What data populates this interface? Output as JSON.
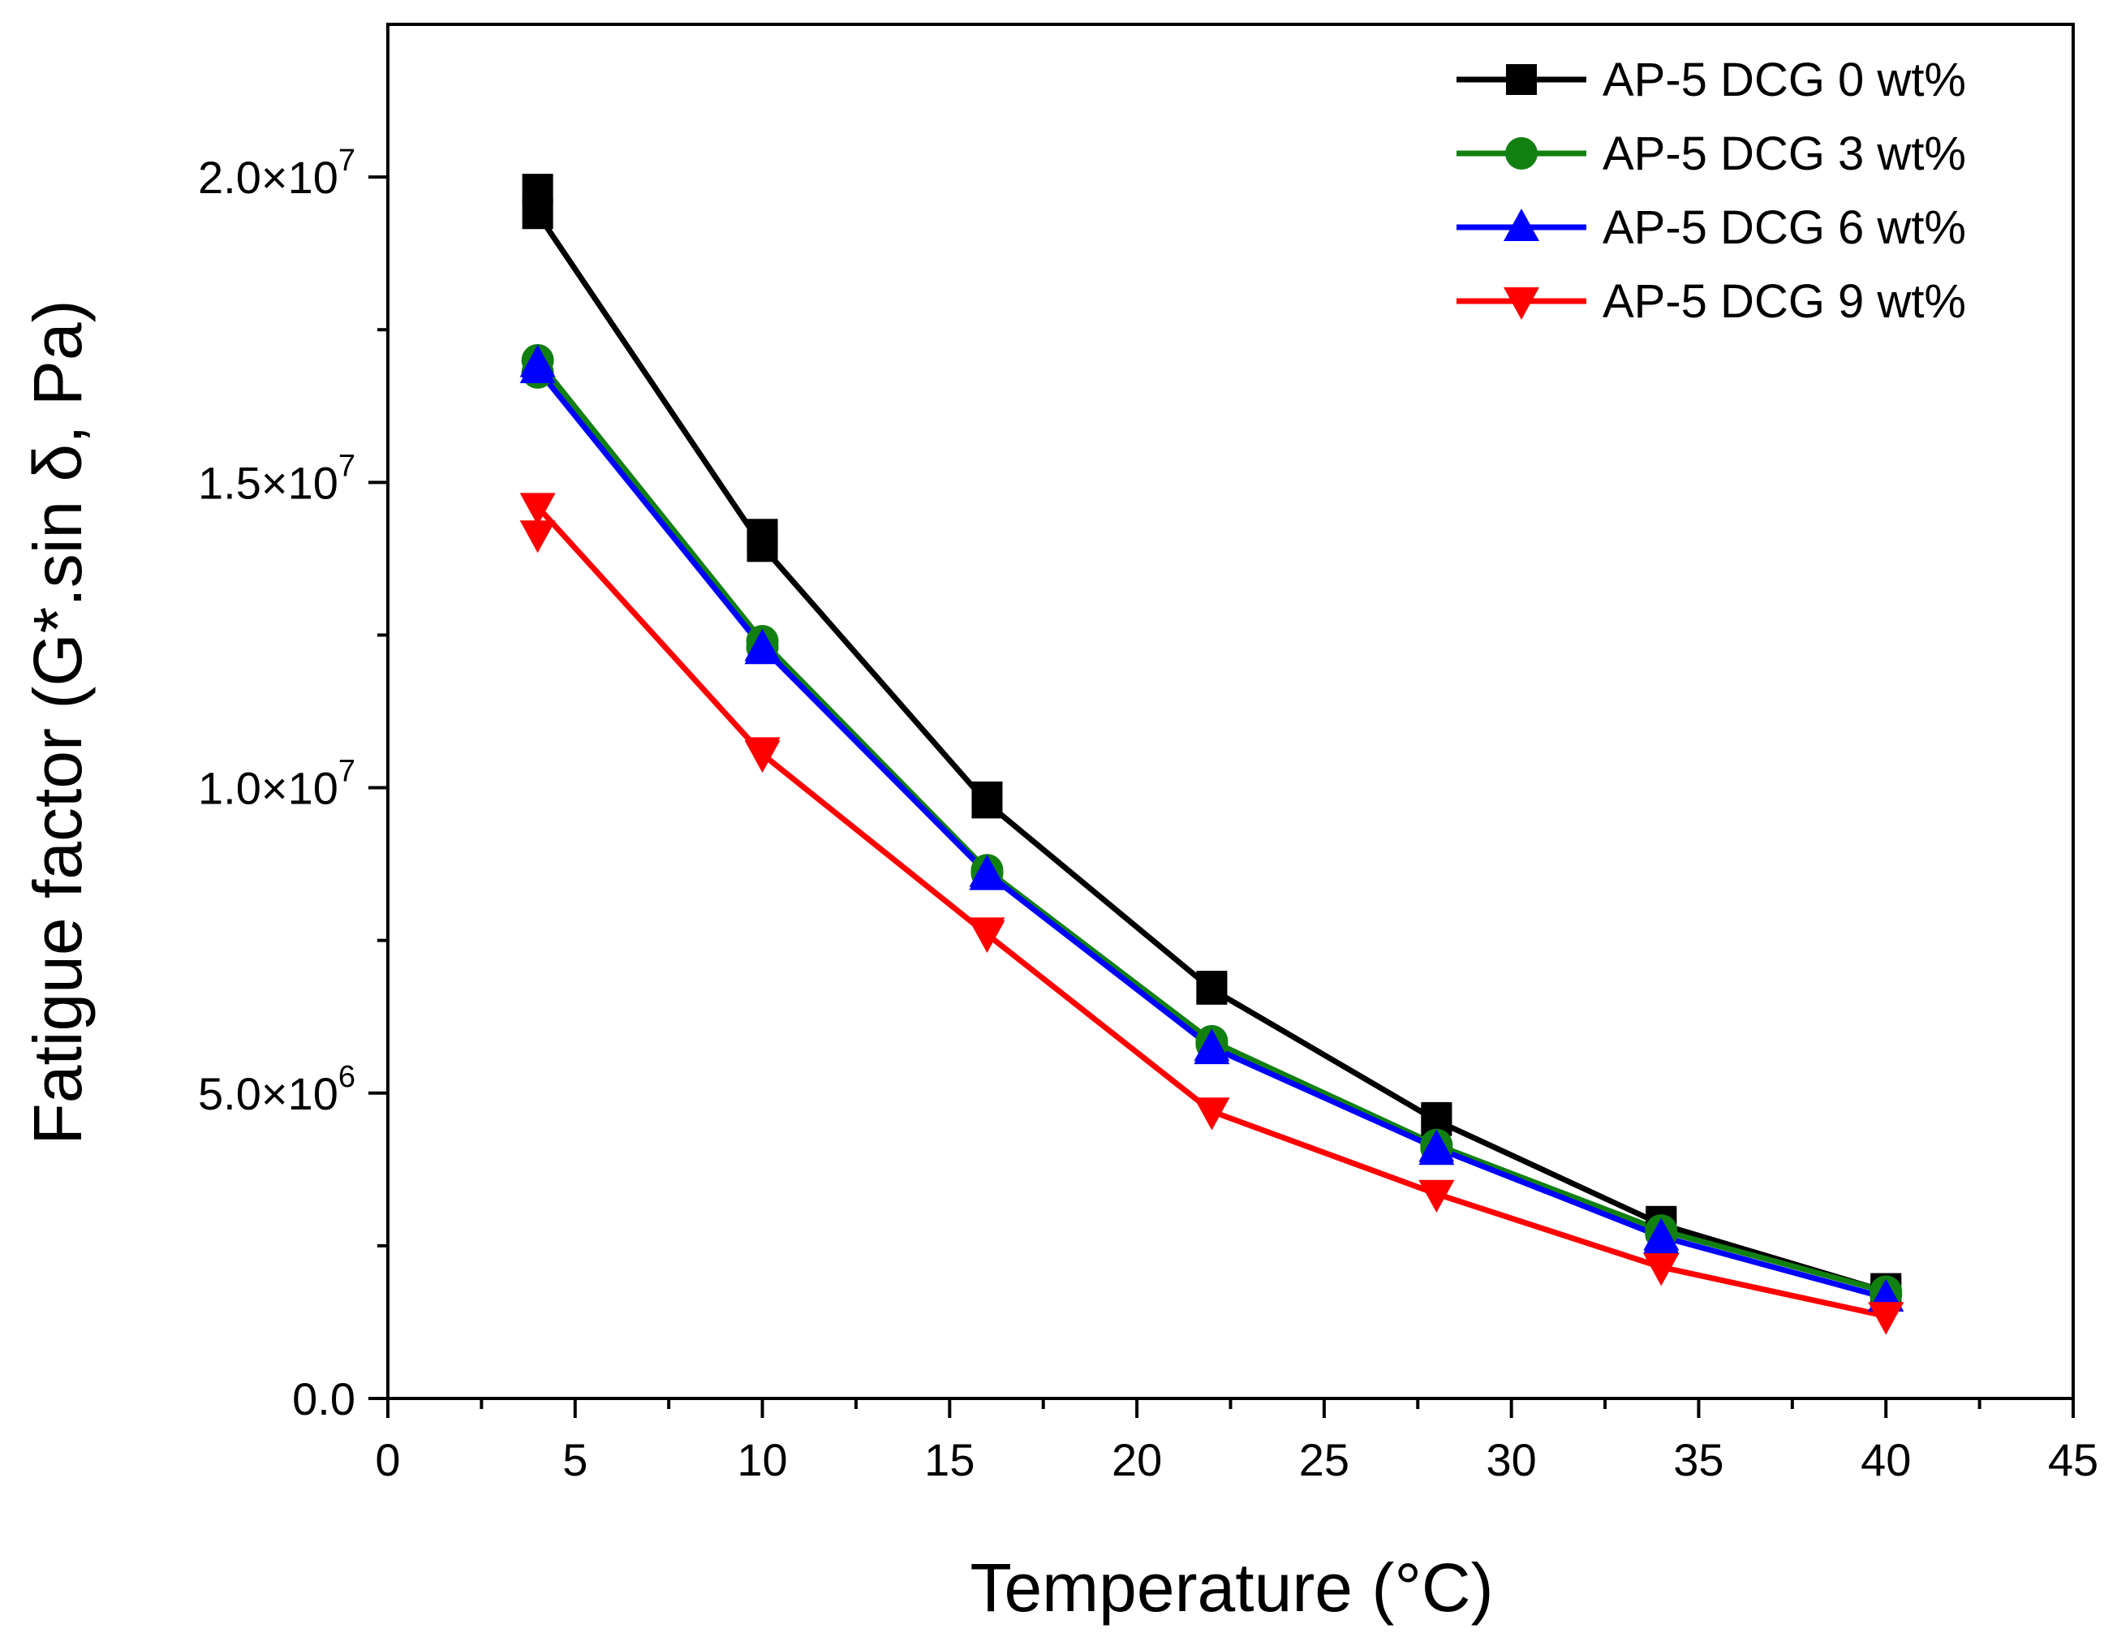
{
  "chart_data": {
    "type": "line",
    "title": "",
    "xlabel": "Temperature (°C)",
    "ylabel": "Fatigue factor (G*.sin δ, Pa)",
    "xlim": [
      0,
      45
    ],
    "ylim": [
      0,
      22500000
    ],
    "x_ticks": [
      0,
      5,
      10,
      15,
      20,
      25,
      30,
      35,
      40,
      45
    ],
    "x_tick_labels": [
      "0",
      "5",
      "10",
      "15",
      "20",
      "25",
      "30",
      "35",
      "40",
      "45"
    ],
    "y_ticks": [
      0,
      5000000,
      10000000,
      15000000,
      20000000
    ],
    "y_tick_labels": [
      {
        "mantissa": "0.0",
        "exp": ""
      },
      {
        "mantissa": "5.0×10",
        "exp": "6"
      },
      {
        "mantissa": "1.0×10",
        "exp": "7"
      },
      {
        "mantissa": "1.5×10",
        "exp": "7"
      },
      {
        "mantissa": "2.0×10",
        "exp": "7"
      }
    ],
    "x": [
      4,
      10,
      16,
      22,
      28,
      34,
      40
    ],
    "series": [
      {
        "name": "AP-5 DCG 0 wt%",
        "color": "#000000",
        "marker": "square",
        "values": [
          19400000,
          13950000,
          9750000,
          6700000,
          4550000,
          2850000,
          1750000
        ],
        "values_alt": [
          19800000,
          14150000,
          9850000,
          6750000,
          4600000,
          2900000,
          1800000
        ]
      },
      {
        "name": "AP-5 DCG 3 wt%",
        "color": "#118011",
        "marker": "circle",
        "values": [
          17000000,
          12400000,
          8650000,
          5850000,
          4150000,
          2750000,
          1750000
        ],
        "values_alt": [
          16800000,
          12300000,
          8600000,
          5800000,
          4100000,
          2700000,
          1700000
        ]
      },
      {
        "name": "AP-5 DCG 6 wt%",
        "color": "#0000ff",
        "marker": "triangle-up",
        "values": [
          16850000,
          12300000,
          8600000,
          5750000,
          4100000,
          2650000,
          1650000
        ],
        "values_alt": [
          16950000,
          12250000,
          8550000,
          5700000,
          4050000,
          2600000,
          1650000
        ]
      },
      {
        "name": "AP-5 DCG 9 wt%",
        "color": "#ff0000",
        "marker": "triangle-down",
        "values": [
          14600000,
          10550000,
          7600000,
          4700000,
          3350000,
          2150000,
          1350000
        ],
        "values_alt": [
          14150000,
          10600000,
          7650000,
          4700000,
          3350000,
          2150000,
          1350000
        ]
      }
    ]
  }
}
